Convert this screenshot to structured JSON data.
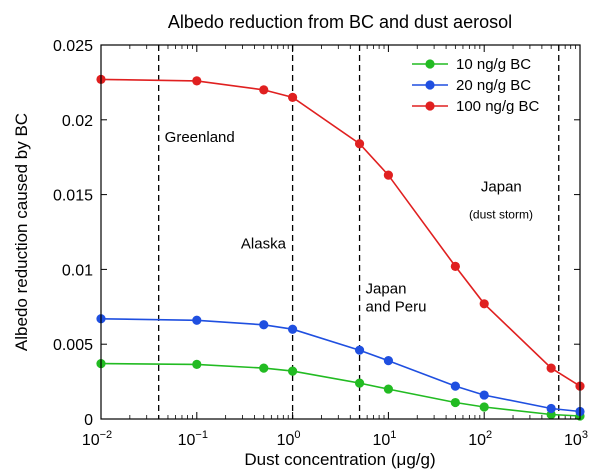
{
  "chart_data": {
    "type": "line",
    "title": "Albedo reduction from BC and dust aerosol",
    "xlabel": "Dust concentration (μg/g)",
    "ylabel": "Albedo reduction caused by BC",
    "x_scale": "log",
    "xlim": [
      0.01,
      1000
    ],
    "ylim": [
      0,
      0.025
    ],
    "grid": false,
    "legend_position": "top-right",
    "x_ticks": [
      {
        "value": 0.01,
        "base": "10",
        "exp": "−2"
      },
      {
        "value": 0.1,
        "base": "10",
        "exp": "−1"
      },
      {
        "value": 1,
        "base": "10",
        "exp": "0"
      },
      {
        "value": 10,
        "base": "10",
        "exp": "1"
      },
      {
        "value": 100,
        "base": "10",
        "exp": "2"
      },
      {
        "value": 1000,
        "base": "10",
        "exp": "3"
      }
    ],
    "y_ticks": [
      {
        "value": 0,
        "label": "0"
      },
      {
        "value": 0.005,
        "label": "0.005"
      },
      {
        "value": 0.01,
        "label": "0.01"
      },
      {
        "value": 0.015,
        "label": "0.015"
      },
      {
        "value": 0.02,
        "label": "0.02"
      },
      {
        "value": 0.025,
        "label": "0.025"
      }
    ],
    "x": [
      0.01,
      0.1,
      0.5,
      1,
      5,
      10,
      50,
      100,
      500,
      1000
    ],
    "series": [
      {
        "name": "10 ng/g BC",
        "color": "#22bb22",
        "values": [
          0.0037,
          0.00365,
          0.0034,
          0.0032,
          0.0024,
          0.002,
          0.0011,
          0.0008,
          0.0003,
          0.0002
        ]
      },
      {
        "name": "20 ng/g BC",
        "color": "#1f4fe0",
        "values": [
          0.0067,
          0.0066,
          0.0063,
          0.006,
          0.0046,
          0.0039,
          0.0022,
          0.0016,
          0.0007,
          0.0005
        ]
      },
      {
        "name": "100 ng/g BC",
        "color": "#e02020",
        "values": [
          0.0227,
          0.0226,
          0.022,
          0.0215,
          0.0184,
          0.0163,
          0.0102,
          0.0077,
          0.0034,
          0.0022
        ]
      }
    ],
    "reference_lines": [
      0.04,
      1,
      5,
      600
    ],
    "annotations": [
      {
        "text": "Greenland",
        "x": 0.04,
        "y": 0.0185,
        "size": 15
      },
      {
        "text": "Alaska",
        "x": 0.25,
        "y": 0.0114,
        "size": 15
      },
      {
        "text": "Japan",
        "x": 5,
        "y": 0.0084,
        "size": 15
      },
      {
        "text": "and Peru",
        "x": 5,
        "y": 0.0072,
        "size": 15
      },
      {
        "text": "Japan",
        "x": 80,
        "y": 0.0152,
        "size": 15
      },
      {
        "text": "(dust storm)",
        "x": 60,
        "y": 0.0134,
        "size": 12
      }
    ]
  }
}
